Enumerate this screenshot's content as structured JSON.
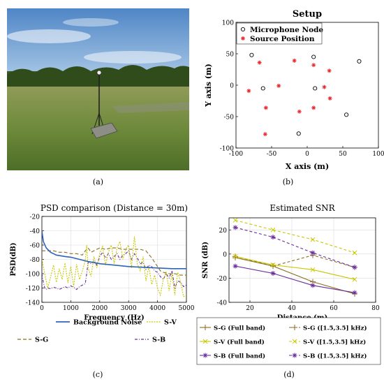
{
  "captions": {
    "a": "(a)",
    "b": "(b)",
    "c": "(c)",
    "d": "(d)"
  },
  "photo": {
    "description_icon": "field-photo-icon"
  },
  "chart_data": [
    {
      "id": "setup",
      "type": "scatter",
      "title": "Setup",
      "xlabel": "X axis (m)",
      "ylabel": "Y axis (m)",
      "xlim": [
        -100,
        100
      ],
      "ylim": [
        -100,
        100
      ],
      "xticks": [
        -100,
        -50,
        0,
        50,
        100
      ],
      "yticks": [
        -100,
        -50,
        0,
        50,
        100
      ],
      "legend": "top-left",
      "series": [
        {
          "name": "Microphone Node",
          "marker": "circle",
          "color": "#000000",
          "points": [
            [
              -78,
              48
            ],
            [
              -62,
              -5
            ],
            [
              9,
              45
            ],
            [
              11,
              -5
            ],
            [
              -12,
              -77
            ],
            [
              55,
              -47
            ],
            [
              73,
              38
            ]
          ]
        },
        {
          "name": "Source Position",
          "marker": "star",
          "color": "#e8252a",
          "points": [
            [
              -67,
              36
            ],
            [
              -18,
              39
            ],
            [
              9,
              32
            ],
            [
              31,
              23
            ],
            [
              -82,
              -9
            ],
            [
              -40,
              -1
            ],
            [
              24,
              -3
            ],
            [
              -58,
              -36
            ],
            [
              -11,
              -42
            ],
            [
              9,
              -36
            ],
            [
              32,
              -21
            ],
            [
              -59,
              -78
            ]
          ]
        }
      ]
    },
    {
      "id": "psd",
      "type": "line",
      "title": "PSD comparison (Distance = 30m)",
      "xlabel": "Frequency (Hz)",
      "ylabel": "PSD(dB)",
      "xlim": [
        0,
        5000
      ],
      "ylim": [
        -140,
        -20
      ],
      "xticks": [
        0,
        1000,
        2000,
        3000,
        4000,
        5000
      ],
      "yticks": [
        -20,
        -40,
        -60,
        -80,
        -100,
        -120,
        -140
      ],
      "legend": "below",
      "series": [
        {
          "name": "Background Noise",
          "color": "#2e64b8",
          "dash": "",
          "x": [
            0,
            50,
            150,
            300,
            500,
            800,
            1000,
            1300,
            1600,
            2000,
            2500,
            3000,
            3500,
            4000,
            4500,
            5000
          ],
          "y": [
            -40,
            -55,
            -64,
            -70,
            -74,
            -76,
            -77,
            -80,
            -83,
            -86,
            -88,
            -90,
            -91,
            -92,
            -93,
            -93
          ]
        },
        {
          "name": "S-V",
          "color": "#c8c800",
          "dash": "2,1.5",
          "x": [
            0,
            100,
            200,
            300,
            400,
            500,
            600,
            700,
            800,
            900,
            1000,
            1100,
            1200,
            1300,
            1400,
            1500,
            1550,
            1600,
            1700,
            1800,
            1900,
            2000,
            2100,
            2200,
            2300,
            2400,
            2500,
            2600,
            2700,
            2800,
            2900,
            3000,
            3100,
            3200,
            3300,
            3400,
            3500,
            3600,
            3700,
            3800,
            3900,
            4000,
            4100,
            4200,
            4300,
            4400,
            4500,
            4600,
            4700,
            4800,
            4900,
            5000
          ],
          "y": [
            -80,
            -100,
            -120,
            -105,
            -88,
            -112,
            -93,
            -108,
            -85,
            -113,
            -90,
            -118,
            -87,
            -108,
            -96,
            -82,
            -60,
            -92,
            -104,
            -76,
            -92,
            -72,
            -62,
            -88,
            -70,
            -60,
            -86,
            -64,
            -55,
            -80,
            -66,
            -60,
            -92,
            -48,
            -86,
            -96,
            -76,
            -110,
            -90,
            -115,
            -102,
            -120,
            -130,
            -108,
            -97,
            -124,
            -100,
            -130,
            -98,
            -112,
            -132,
            -130
          ]
        },
        {
          "name": "S-G",
          "color": "#8a6b1e",
          "dash": "5,3",
          "x": [
            0,
            100,
            200,
            300,
            400,
            500,
            600,
            700,
            800,
            900,
            1000,
            1100,
            1200,
            1300,
            1400,
            1500,
            1600,
            1700,
            1800,
            1900,
            2000,
            2200,
            2400,
            2600,
            2800,
            3000,
            3200,
            3400,
            3600,
            3800,
            3900,
            4000,
            4100,
            4200,
            4400,
            4600,
            4800,
            5000
          ],
          "y": [
            -68,
            -68,
            -68,
            -68,
            -68,
            -69,
            -70,
            -70,
            -70,
            -71,
            -72,
            -72,
            -72,
            -73,
            -74,
            -68,
            -64,
            -70,
            -68,
            -66,
            -64,
            -66,
            -64,
            -64,
            -66,
            -66,
            -66,
            -66,
            -68,
            -78,
            -84,
            -90,
            -96,
            -98,
            -100,
            -100,
            -102,
            -102
          ]
        },
        {
          "name": "S-B",
          "color": "#6a2c9c",
          "dash": "4,2,1,2",
          "x": [
            0,
            50,
            100,
            150,
            200,
            300,
            400,
            500,
            600,
            700,
            800,
            900,
            1000,
            1100,
            1200,
            1300,
            1400,
            1500,
            1550,
            1600,
            1700,
            1800,
            1900,
            2000,
            2100,
            2200,
            2300,
            2400,
            2500,
            2600,
            2700,
            2800,
            2900,
            3000,
            3100,
            3200,
            3300,
            3400,
            3500,
            3600,
            3700,
            3800,
            3900,
            4000,
            4100,
            4200,
            4300,
            4400,
            4500,
            4600,
            4700,
            4800,
            4900,
            5000
          ],
          "y": [
            -100,
            -112,
            -120,
            -122,
            -120,
            -121,
            -119,
            -120,
            -122,
            -120,
            -118,
            -120,
            -117,
            -119,
            -122,
            -118,
            -116,
            -114,
            -100,
            -84,
            -86,
            -82,
            -88,
            -76,
            -70,
            -78,
            -72,
            -80,
            -76,
            -72,
            -80,
            -74,
            -72,
            -68,
            -80,
            -72,
            -78,
            -86,
            -84,
            -94,
            -88,
            -90,
            -96,
            -98,
            -104,
            -108,
            -100,
            -106,
            -96,
            -120,
            -110,
            -112,
            -118,
            -116
          ]
        }
      ]
    },
    {
      "id": "snr",
      "type": "line",
      "title": "Estimated SNR",
      "xlabel": "Distance (m)",
      "ylabel": "SNR (dB)",
      "xlim": [
        10,
        80
      ],
      "ylim": [
        -40,
        30
      ],
      "xticks": [
        20,
        40,
        60,
        80
      ],
      "yticks": [
        20,
        0,
        -20,
        -40
      ],
      "legend": "below",
      "series": [
        {
          "name": "S-G (Full band)",
          "color": "#8a6b1e",
          "dash": "",
          "marker": "plus",
          "x": [
            13,
            31,
            50,
            70
          ],
          "y": [
            -3,
            -10,
            -23,
            -33
          ]
        },
        {
          "name": "S-G ([1.5,3.5] kHz)",
          "color": "#8a6b1e",
          "dash": "4,3",
          "marker": "plus",
          "x": [
            13,
            31,
            50,
            70
          ],
          "y": [
            -2,
            -10,
            -1,
            -11
          ]
        },
        {
          "name": "S-V (Full band)",
          "color": "#c8c800",
          "dash": "",
          "marker": "x",
          "x": [
            13,
            31,
            50,
            70
          ],
          "y": [
            -2,
            -9,
            -13,
            -21
          ]
        },
        {
          "name": "S-V ([1.5,3.5] kHz)",
          "color": "#c8c800",
          "dash": "4,3",
          "marker": "x",
          "x": [
            13,
            31,
            50,
            70
          ],
          "y": [
            28,
            20,
            12,
            1
          ]
        },
        {
          "name": "S-B (Full band)",
          "color": "#6a2c9c",
          "dash": "",
          "marker": "star",
          "x": [
            13,
            31,
            50,
            70
          ],
          "y": [
            -10,
            -16,
            -26,
            -32
          ]
        },
        {
          "name": "S-B ([1.5,3.5] kHz)",
          "color": "#6a2c9c",
          "dash": "4,3",
          "marker": "star",
          "x": [
            13,
            31,
            50,
            70
          ],
          "y": [
            22,
            14,
            1,
            -11
          ]
        }
      ]
    }
  ]
}
